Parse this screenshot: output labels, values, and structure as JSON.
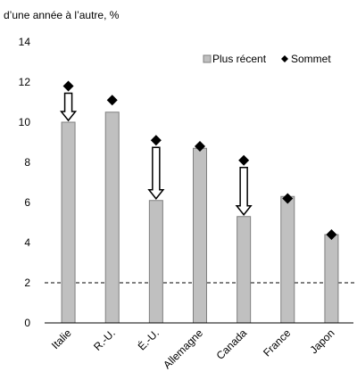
{
  "chart_data": {
    "type": "bar",
    "unit_label": "d’une année à l’autre, %",
    "categories": [
      "Italie",
      "R.-U.",
      "É.-U.",
      "Allemagne",
      "Canada",
      "France",
      "Japon"
    ],
    "series": [
      {
        "name": "Plus récent",
        "type": "bar",
        "values": [
          10.0,
          10.5,
          6.1,
          8.7,
          5.3,
          6.3,
          4.4
        ]
      },
      {
        "name": "Sommet",
        "type": "marker",
        "values": [
          11.8,
          11.1,
          9.1,
          8.8,
          8.1,
          6.2,
          4.4
        ]
      }
    ],
    "reference_line": {
      "value": 2,
      "style": "dashed"
    },
    "arrows_on": [
      "Italie",
      "É.-U.",
      "Canada"
    ],
    "ylim": [
      0,
      14
    ],
    "yticks": [
      0,
      2,
      4,
      6,
      8,
      10,
      12,
      14
    ],
    "legend_position": "top-right",
    "colors": {
      "bar_fill": "#c0c0c0",
      "bar_stroke": "#7f7f7f",
      "marker": "#000000",
      "axis": "#000000"
    }
  }
}
